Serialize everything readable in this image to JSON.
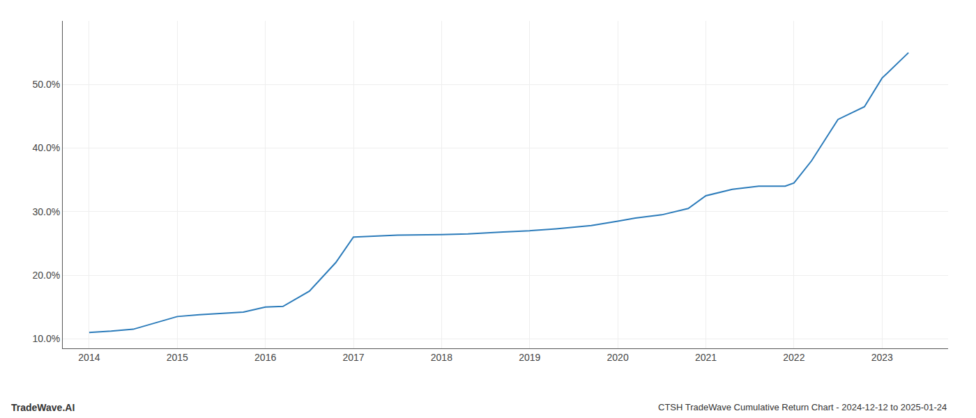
{
  "chart_data": {
    "type": "line",
    "x": [
      2014.0,
      2014.25,
      2014.5,
      2014.75,
      2015.0,
      2015.25,
      2015.5,
      2015.75,
      2016.0,
      2016.2,
      2016.5,
      2016.8,
      2017.0,
      2017.3,
      2017.5,
      2018.0,
      2018.3,
      2018.7,
      2019.0,
      2019.3,
      2019.7,
      2020.0,
      2020.2,
      2020.5,
      2020.8,
      2021.0,
      2021.3,
      2021.6,
      2021.9,
      2022.0,
      2022.2,
      2022.5,
      2022.8,
      2023.0,
      2023.3
    ],
    "values": [
      11.0,
      11.2,
      11.5,
      12.5,
      13.5,
      13.8,
      14.0,
      14.2,
      15.0,
      15.1,
      17.5,
      22.0,
      26.0,
      26.2,
      26.3,
      26.4,
      26.5,
      26.8,
      27.0,
      27.3,
      27.8,
      28.5,
      29.0,
      29.5,
      30.5,
      32.5,
      33.5,
      34.0,
      34.0,
      34.5,
      38.0,
      44.5,
      46.5,
      51.0,
      55.0
    ],
    "color": "#2b7bba",
    "xlim": [
      2013.7,
      2023.75
    ],
    "xticks": [
      2014,
      2015,
      2016,
      2017,
      2018,
      2019,
      2020,
      2021,
      2022,
      2023
    ],
    "ylim": [
      8.5,
      60.0
    ],
    "yticks": [
      {
        "value": 10.0,
        "label": "10.0%"
      },
      {
        "value": 20.0,
        "label": "20.0%"
      },
      {
        "value": 30.0,
        "label": "30.0%"
      },
      {
        "value": 40.0,
        "label": "40.0%"
      },
      {
        "value": 50.0,
        "label": "50.0%"
      }
    ],
    "grid": true,
    "annotations": [
      "TradeWave.AI",
      "CTSH TradeWave Cumulative Return Chart - 2024-12-12 to 2025-01-24"
    ]
  }
}
